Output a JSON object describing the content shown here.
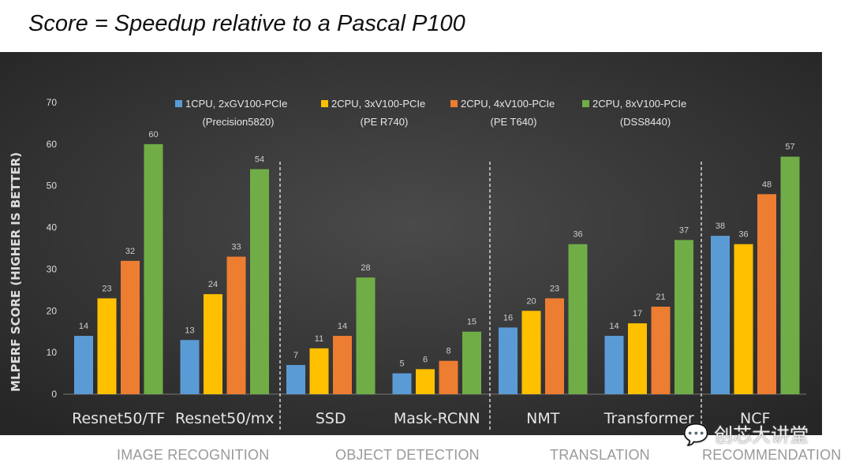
{
  "title": "Score = Speedup relative to a Pascal P100",
  "watermark": "创芯大讲堂",
  "chart_data": {
    "type": "bar",
    "title": "Score = Speedup relative to a Pascal P100",
    "xlabel": "",
    "ylabel": "MLPERF SCORE (HIGHER IS BETTER)",
    "ylim": [
      0,
      70
    ],
    "yticks": [
      0,
      10,
      20,
      30,
      40,
      50,
      60,
      70
    ],
    "grid": false,
    "legend_position": "top",
    "categories": [
      "Resnet50/TF",
      "Resnet50/mx",
      "SSD",
      "Mask-RCNN",
      "NMT",
      "Transformer",
      "NCF"
    ],
    "sections": [
      {
        "label": "IMAGE RECOGNITION",
        "categories": [
          "Resnet50/TF",
          "Resnet50/mx"
        ]
      },
      {
        "label": "OBJECT DETECTION",
        "categories": [
          "SSD",
          "Mask-RCNN"
        ]
      },
      {
        "label": "TRANSLATION",
        "categories": [
          "NMT",
          "Transformer"
        ]
      },
      {
        "label": "RECOMMENDATION",
        "categories": [
          "NCF"
        ]
      }
    ],
    "series": [
      {
        "name": "1CPU, 2xGV100-PCIe",
        "sub": "(Precision5820)",
        "color": "#5b9bd5",
        "values": [
          14,
          13,
          7,
          5,
          16,
          14,
          38
        ]
      },
      {
        "name": "2CPU, 3xV100-PCIe",
        "sub": "(PE R740)",
        "color": "#ffc000",
        "values": [
          23,
          24,
          11,
          6,
          20,
          17,
          36
        ]
      },
      {
        "name": "2CPU, 4xV100-PCIe",
        "sub": "(PE T640)",
        "color": "#ed7d31",
        "values": [
          32,
          33,
          14,
          8,
          23,
          21,
          48
        ]
      },
      {
        "name": "2CPU, 8xV100-PCIe",
        "sub": "(DSS8440)",
        "color": "#70ad47",
        "values": [
          60,
          54,
          28,
          15,
          36,
          37,
          57
        ]
      }
    ]
  }
}
